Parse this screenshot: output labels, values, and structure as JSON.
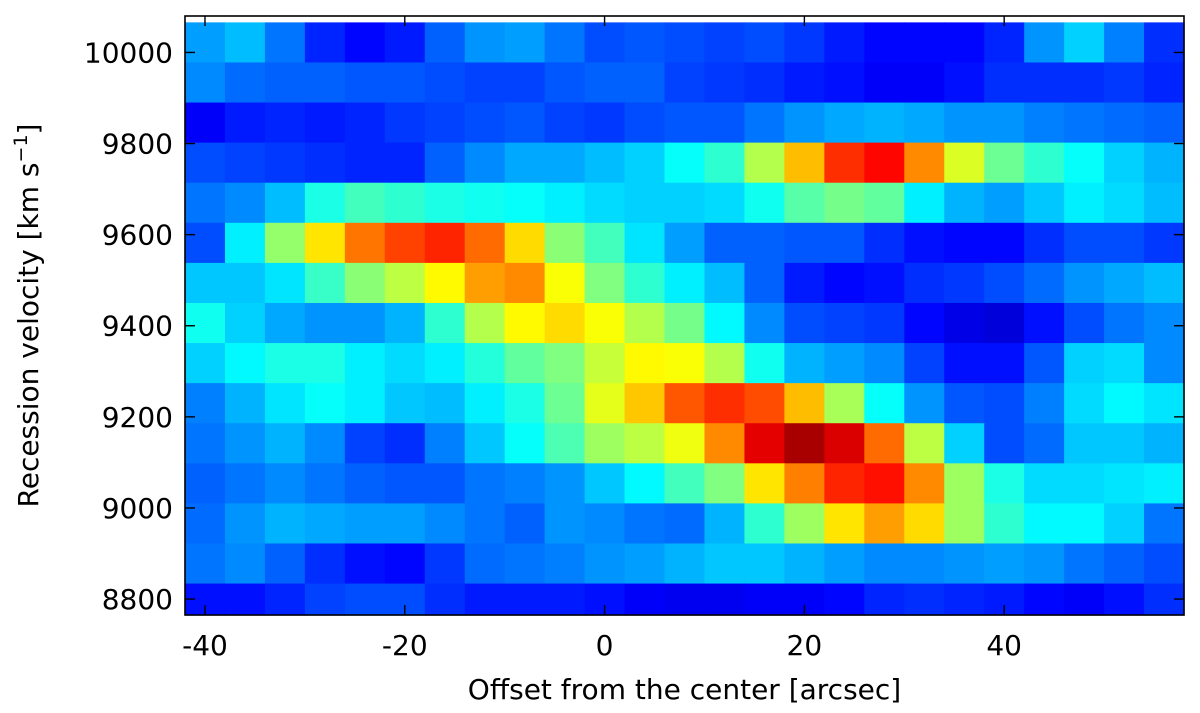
{
  "chart_data": {
    "type": "heatmap",
    "title": "",
    "xlabel": "Offset from the center [arcsec]",
    "ylabel_main": "Recession velocity [km s",
    "ylabel_sup": "−1",
    "ylabel_close": "]",
    "xlim": [
      -42,
      58
    ],
    "ylim": [
      8765,
      10080
    ],
    "x_ticks": [
      -40,
      -20,
      0,
      20,
      40
    ],
    "x_tick_labels": [
      "-40",
      "-20",
      "0",
      "20",
      "40"
    ],
    "y_ticks": [
      8800,
      9000,
      9200,
      9400,
      9600,
      9800,
      10000
    ],
    "y_tick_labels": [
      "8800",
      "9000",
      "9200",
      "9400",
      "9600",
      "9800",
      "10000"
    ],
    "colormap": "jet",
    "value_range": [
      0,
      1
    ],
    "x_bin_centers": [
      -40,
      -36,
      -32,
      -28,
      -24,
      -20,
      -16,
      -12,
      -8,
      -4,
      0,
      4,
      8,
      12,
      16,
      20,
      24,
      28,
      32,
      36,
      40,
      44,
      48,
      52,
      56
    ],
    "y_bin_centers": [
      10022,
      9934,
      9846,
      9758,
      9670,
      9582,
      9494,
      9406,
      9318,
      9230,
      9142,
      9054,
      8966,
      8878,
      8790
    ],
    "values": [
      [
        0.28,
        0.31,
        0.24,
        0.16,
        0.13,
        0.15,
        0.22,
        0.27,
        0.28,
        0.24,
        0.2,
        0.21,
        0.2,
        0.19,
        0.2,
        0.18,
        0.15,
        0.13,
        0.13,
        0.13,
        0.16,
        0.27,
        0.33,
        0.25,
        0.17
      ],
      [
        0.26,
        0.23,
        0.22,
        0.22,
        0.21,
        0.21,
        0.2,
        0.19,
        0.19,
        0.21,
        0.22,
        0.22,
        0.19,
        0.18,
        0.17,
        0.15,
        0.14,
        0.12,
        0.12,
        0.14,
        0.17,
        0.17,
        0.17,
        0.18,
        0.16
      ],
      [
        0.12,
        0.15,
        0.16,
        0.15,
        0.16,
        0.18,
        0.19,
        0.2,
        0.21,
        0.19,
        0.18,
        0.2,
        0.21,
        0.21,
        0.24,
        0.27,
        0.29,
        0.3,
        0.29,
        0.27,
        0.27,
        0.25,
        0.24,
        0.23,
        0.22
      ],
      [
        0.2,
        0.19,
        0.18,
        0.17,
        0.16,
        0.16,
        0.22,
        0.26,
        0.29,
        0.29,
        0.31,
        0.33,
        0.38,
        0.42,
        0.55,
        0.69,
        0.83,
        0.87,
        0.74,
        0.59,
        0.48,
        0.42,
        0.38,
        0.33,
        0.3
      ],
      [
        0.24,
        0.26,
        0.31,
        0.4,
        0.44,
        0.42,
        0.4,
        0.39,
        0.38,
        0.36,
        0.34,
        0.33,
        0.33,
        0.34,
        0.39,
        0.46,
        0.49,
        0.47,
        0.36,
        0.3,
        0.28,
        0.32,
        0.36,
        0.34,
        0.31
      ],
      [
        0.2,
        0.36,
        0.52,
        0.65,
        0.76,
        0.81,
        0.84,
        0.77,
        0.66,
        0.51,
        0.44,
        0.35,
        0.28,
        0.22,
        0.22,
        0.21,
        0.21,
        0.17,
        0.14,
        0.13,
        0.13,
        0.17,
        0.2,
        0.2,
        0.18
      ],
      [
        0.32,
        0.32,
        0.35,
        0.43,
        0.51,
        0.56,
        0.63,
        0.72,
        0.74,
        0.62,
        0.5,
        0.42,
        0.36,
        0.31,
        0.22,
        0.15,
        0.13,
        0.14,
        0.17,
        0.18,
        0.2,
        0.23,
        0.27,
        0.29,
        0.31
      ],
      [
        0.39,
        0.33,
        0.29,
        0.27,
        0.27,
        0.3,
        0.42,
        0.55,
        0.63,
        0.66,
        0.62,
        0.55,
        0.49,
        0.37,
        0.26,
        0.2,
        0.19,
        0.18,
        0.13,
        0.1,
        0.09,
        0.14,
        0.2,
        0.24,
        0.26
      ],
      [
        0.33,
        0.37,
        0.4,
        0.4,
        0.36,
        0.34,
        0.36,
        0.41,
        0.47,
        0.5,
        0.57,
        0.63,
        0.62,
        0.55,
        0.39,
        0.3,
        0.28,
        0.26,
        0.19,
        0.14,
        0.14,
        0.21,
        0.33,
        0.34,
        0.26
      ],
      [
        0.25,
        0.3,
        0.35,
        0.38,
        0.36,
        0.32,
        0.31,
        0.36,
        0.4,
        0.48,
        0.6,
        0.68,
        0.79,
        0.83,
        0.8,
        0.69,
        0.54,
        0.38,
        0.27,
        0.21,
        0.2,
        0.25,
        0.34,
        0.37,
        0.35
      ],
      [
        0.24,
        0.27,
        0.3,
        0.26,
        0.19,
        0.17,
        0.25,
        0.32,
        0.38,
        0.45,
        0.53,
        0.56,
        0.61,
        0.74,
        0.9,
        0.96,
        0.91,
        0.77,
        0.56,
        0.33,
        0.2,
        0.23,
        0.32,
        0.32,
        0.3
      ],
      [
        0.22,
        0.24,
        0.26,
        0.24,
        0.22,
        0.21,
        0.21,
        0.24,
        0.25,
        0.27,
        0.32,
        0.37,
        0.44,
        0.5,
        0.65,
        0.75,
        0.84,
        0.86,
        0.74,
        0.53,
        0.4,
        0.34,
        0.34,
        0.35,
        0.36
      ],
      [
        0.23,
        0.27,
        0.3,
        0.29,
        0.28,
        0.28,
        0.26,
        0.24,
        0.22,
        0.27,
        0.26,
        0.24,
        0.23,
        0.3,
        0.42,
        0.53,
        0.65,
        0.72,
        0.66,
        0.53,
        0.42,
        0.37,
        0.37,
        0.33,
        0.24
      ],
      [
        0.24,
        0.26,
        0.22,
        0.17,
        0.14,
        0.13,
        0.18,
        0.23,
        0.24,
        0.25,
        0.27,
        0.28,
        0.3,
        0.32,
        0.32,
        0.3,
        0.28,
        0.26,
        0.26,
        0.27,
        0.28,
        0.27,
        0.24,
        0.22,
        0.2
      ],
      [
        0.14,
        0.14,
        0.16,
        0.19,
        0.2,
        0.2,
        0.17,
        0.15,
        0.15,
        0.15,
        0.14,
        0.12,
        0.11,
        0.11,
        0.12,
        0.12,
        0.13,
        0.16,
        0.17,
        0.16,
        0.15,
        0.13,
        0.12,
        0.14,
        0.17
      ]
    ]
  }
}
